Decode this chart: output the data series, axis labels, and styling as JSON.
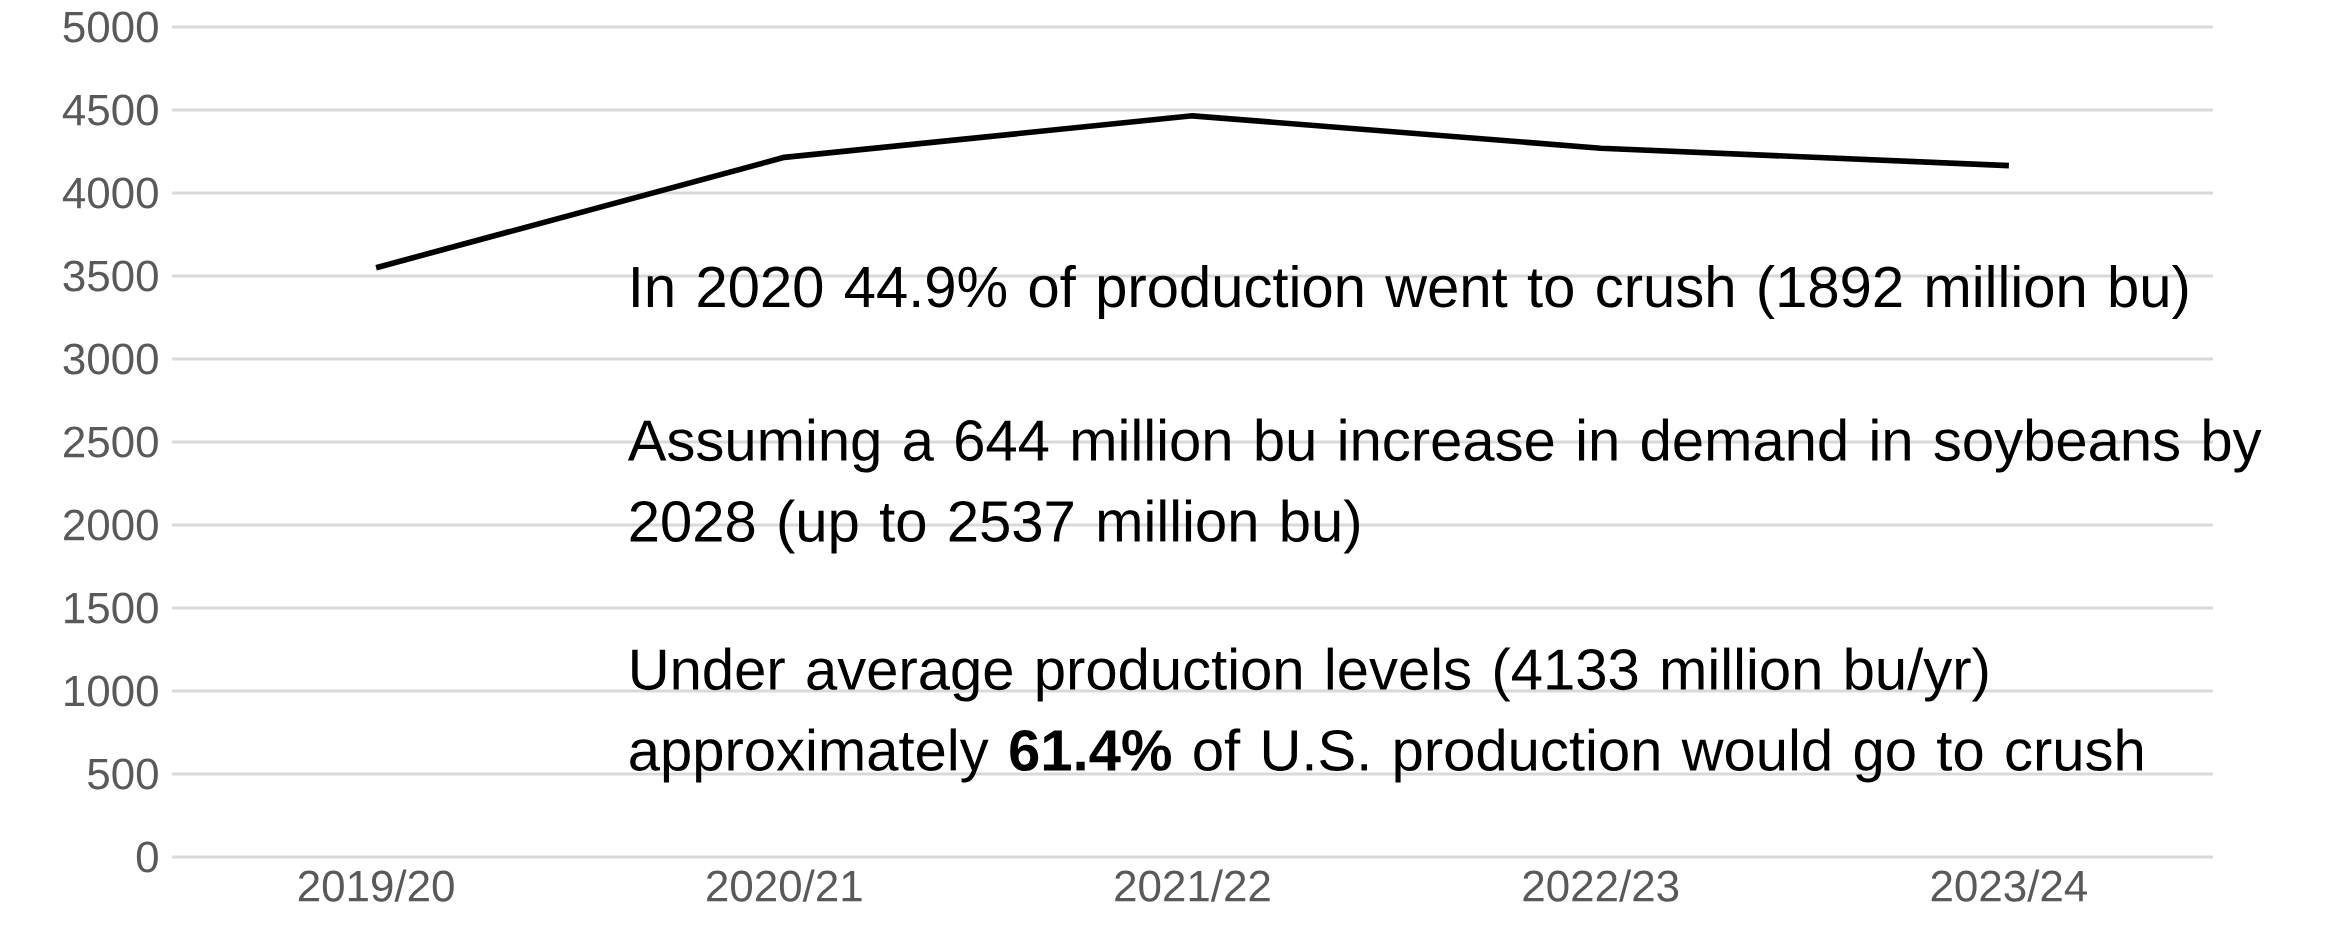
{
  "chart_data": {
    "type": "line",
    "categories": [
      "2019/20",
      "2020/21",
      "2021/22",
      "2022/23",
      "2023/24"
    ],
    "values": [
      3550,
      4215,
      4465,
      4270,
      4165
    ],
    "color": "#000000",
    "ylim": [
      0,
      5000
    ],
    "yticks": [
      0,
      500,
      1000,
      1500,
      2000,
      2500,
      3000,
      3500,
      4000,
      4500,
      5000
    ],
    "grid": "y",
    "marker": "none",
    "line_style": "solid",
    "annotations": [
      "In 2020 44.9% of production went to crush (1892 million bu)",
      "Assuming a 644 million bu increase in demand in soybeans by 2028 (up to 2537 million bu)",
      "Under average production levels (4133 million bu/yr) approximately **61.4%** of U.S. production would go to crush"
    ]
  }
}
